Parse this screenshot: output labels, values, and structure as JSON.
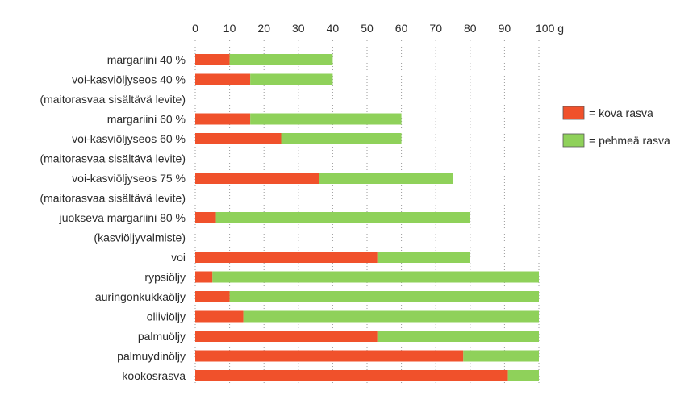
{
  "chart_data": {
    "type": "bar",
    "orientation": "horizontal",
    "stacked": true,
    "xlim": [
      0,
      100
    ],
    "x_ticks": [
      {
        "value": 0,
        "label": "0"
      },
      {
        "value": 10,
        "label": "10"
      },
      {
        "value": 20,
        "label": "20"
      },
      {
        "value": 30,
        "label": "30"
      },
      {
        "value": 40,
        "label": "40"
      },
      {
        "value": 50,
        "label": "50"
      },
      {
        "value": 60,
        "label": "60"
      },
      {
        "value": 70,
        "label": "70"
      },
      {
        "value": 80,
        "label": "80"
      },
      {
        "value": 90,
        "label": "90"
      },
      {
        "value": 100,
        "label": "100 g"
      }
    ],
    "x_tick_position": "top",
    "grid": "vertical dotted",
    "legend_position": "right",
    "rows": [
      {
        "label": "margariini 40 %",
        "bar": true
      },
      {
        "label": "voi-kasviöljyseos 40 %",
        "bar": true
      },
      {
        "label": "(maitorasvaa sisältävä levite)",
        "bar": false
      },
      {
        "label": "margariini 60 %",
        "bar": true
      },
      {
        "label": "voi-kasviöljyseos 60 %",
        "bar": true
      },
      {
        "label": "(maitorasvaa sisältävä levite)",
        "bar": false
      },
      {
        "label": "voi-kasviöljyseos 75 %",
        "bar": true
      },
      {
        "label": "(maitorasvaa sisältävä levite)",
        "bar": false
      },
      {
        "label": "juokseva margariini 80 %",
        "bar": true
      },
      {
        "label": "(kasviöljyvalmiste)",
        "bar": false
      },
      {
        "label": "voi",
        "bar": true
      },
      {
        "label": "rypsiöljy",
        "bar": true
      },
      {
        "label": "auringonkukkaöljy",
        "bar": true
      },
      {
        "label": "oliiviöljy",
        "bar": true
      },
      {
        "label": "palmuöljy",
        "bar": true
      },
      {
        "label": "palmuydinöljy",
        "bar": true
      },
      {
        "label": "kookosrasva",
        "bar": true
      }
    ],
    "series": [
      {
        "name": "= kova rasva",
        "color": "#f0512b",
        "values": [
          10,
          16,
          null,
          16,
          25,
          null,
          36,
          null,
          6,
          null,
          53,
          5,
          10,
          14,
          53,
          78,
          91
        ]
      },
      {
        "name": "= pehmeä rasva",
        "color": "#8fd15a",
        "values": [
          30,
          24,
          null,
          44,
          35,
          null,
          39,
          null,
          74,
          null,
          27,
          95,
          90,
          86,
          47,
          22,
          9
        ]
      }
    ]
  }
}
